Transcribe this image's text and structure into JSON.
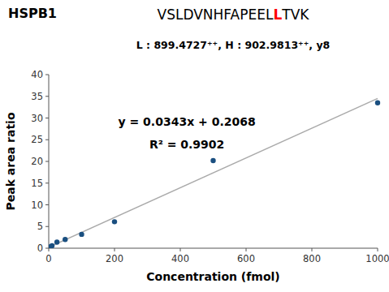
{
  "chart_data": {
    "type": "scatter",
    "title": [
      {
        "text": "VSLDVNHFAPEEL"
      },
      {
        "text": "L",
        "color": "red"
      },
      {
        "text": "TVK"
      }
    ],
    "subtitle": "L : 899.4727⁺⁺, H : 902.9813⁺⁺, y8",
    "annotations": [
      "HSPB1",
      "y = 0.0343x + 0.2068",
      "R² = 0.9902"
    ],
    "x_label": "Concentration (fmol)",
    "y_label": "Peak area ratio",
    "series": [
      {
        "type": "scatter",
        "color": "#1a4f80",
        "x": [
          0.5,
          5,
          10,
          25,
          50,
          100,
          200,
          500,
          1000
        ],
        "values": [
          0.2,
          0.35,
          0.55,
          1.4,
          2.0,
          3.2,
          6.1,
          20.2,
          33.5
        ]
      },
      {
        "type": "line",
        "color": "#aaaaaa",
        "x": [
          0,
          1000
        ],
        "values": [
          0.2068,
          34.5068
        ]
      }
    ],
    "xlim": [
      0,
      1000
    ],
    "ylim": [
      0,
      40
    ],
    "xticks": [
      0,
      200,
      400,
      600,
      800,
      1000
    ],
    "yticks": [
      0,
      5,
      10,
      15,
      20,
      25,
      30,
      35,
      40
    ],
    "grid": false
  }
}
